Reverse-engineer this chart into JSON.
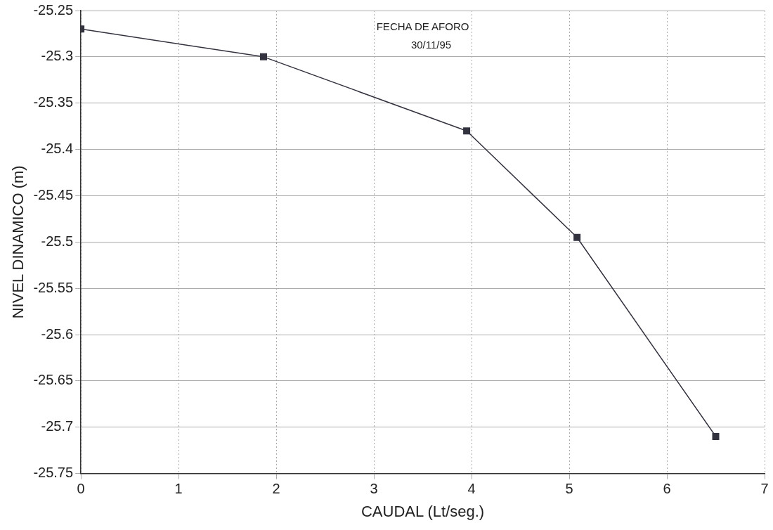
{
  "chart_data": {
    "type": "line",
    "xlabel": "CAUDAL (Lt/seg.)",
    "ylabel": "NIVEL DINAMICO (m)",
    "annotations": [
      "FECHA DE AFORO",
      "30/11/95"
    ],
    "series": [
      {
        "color": "#333340",
        "x": [
          0,
          1.87,
          3.95,
          5.08,
          6.5
        ],
        "values": [
          -25.27,
          -25.3,
          -25.38,
          -25.495,
          -25.71
        ]
      }
    ],
    "xlim": [
      0,
      7
    ],
    "xticks": [
      0,
      1,
      2,
      3,
      4,
      5,
      6,
      7
    ],
    "ylim": [
      -25.75,
      -25.25
    ],
    "yticks": [
      -25.75,
      -25.7,
      -25.65,
      -25.6,
      -25.55,
      -25.5,
      -25.45,
      -25.4,
      -25.35,
      -25.3,
      -25.25
    ],
    "grid": true,
    "legend": false,
    "marker": "square",
    "line_style": "solid"
  }
}
